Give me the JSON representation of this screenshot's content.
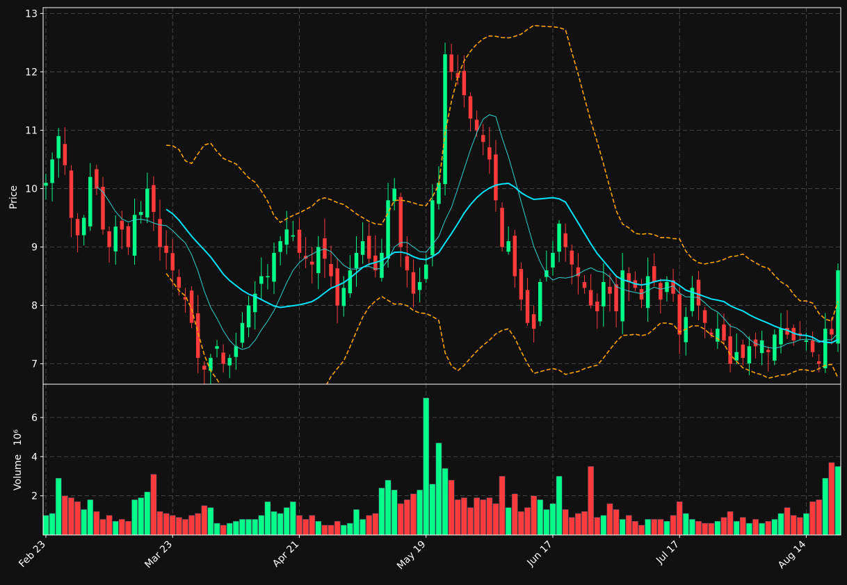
{
  "colors": {
    "background": "#111111",
    "up": "#00ff88",
    "down": "#ff3b3b",
    "sma_fast": "#2dd4d4",
    "sma_slow": "#00e5ff",
    "band": "#ffa500",
    "grid": "#555555",
    "axis": "#ffffff"
  },
  "chart_data": {
    "type": "candlestick",
    "style": "dark",
    "grid": true,
    "price_panel": {
      "ylabel": "Price",
      "ylim": [
        6.65,
        13.1
      ],
      "yticks": [
        "7",
        "8",
        "9",
        "10",
        "11",
        "12",
        "13"
      ],
      "ytick_values": [
        7,
        8,
        9,
        10,
        11,
        12,
        13
      ]
    },
    "volume_panel": {
      "ylabel": "Volume",
      "unit": "10⁶",
      "ylim": [
        0,
        7.7
      ],
      "yticks": [
        "2",
        "4",
        "6"
      ],
      "ytick_values": [
        2,
        4,
        6
      ]
    },
    "xticks": [
      {
        "label": "Feb 23",
        "index": 0
      },
      {
        "label": "Mar 23",
        "index": 20
      },
      {
        "label": "Apr 21",
        "index": 40
      },
      {
        "label": "May 19",
        "index": 60
      },
      {
        "label": "Jun 17",
        "index": 80
      },
      {
        "label": "Jul 17",
        "index": 100
      },
      {
        "label": "Aug 14",
        "index": 120
      }
    ],
    "anchors": {
      "close": [
        [
          0,
          10.1
        ],
        [
          2,
          10.9
        ],
        [
          3,
          10.4
        ],
        [
          4,
          9.5
        ],
        [
          5,
          9.2
        ],
        [
          6,
          9.5
        ],
        [
          7,
          10.2
        ],
        [
          8,
          10.0
        ],
        [
          9,
          9.3
        ],
        [
          10,
          9.0
        ],
        [
          11,
          9.35
        ],
        [
          12,
          9.3
        ],
        [
          13,
          9.0
        ],
        [
          14,
          9.55
        ],
        [
          15,
          9.6
        ],
        [
          16,
          10.0
        ],
        [
          17,
          9.6
        ],
        [
          18,
          9.0
        ],
        [
          19,
          8.9
        ],
        [
          20,
          8.6
        ],
        [
          21,
          8.3
        ],
        [
          22,
          8.1
        ],
        [
          23,
          7.7
        ],
        [
          24,
          7.1
        ],
        [
          25,
          6.9
        ],
        [
          26,
          7.1
        ],
        [
          27,
          7.3
        ],
        [
          28,
          7.0
        ],
        [
          29,
          7.1
        ],
        [
          30,
          7.3
        ],
        [
          31,
          7.7
        ],
        [
          32,
          8.0
        ],
        [
          33,
          8.2
        ],
        [
          34,
          8.5
        ],
        [
          35,
          8.5
        ],
        [
          36,
          8.9
        ],
        [
          37,
          9.1
        ],
        [
          38,
          9.3
        ],
        [
          39,
          9.2
        ],
        [
          40,
          8.9
        ],
        [
          41,
          8.8
        ],
        [
          42,
          8.7
        ],
        [
          43,
          9.0
        ],
        [
          44,
          8.8
        ],
        [
          45,
          8.5
        ],
        [
          46,
          8.0
        ],
        [
          47,
          8.3
        ],
        [
          48,
          8.6
        ],
        [
          49,
          8.9
        ],
        [
          50,
          9.1
        ],
        [
          51,
          8.8
        ],
        [
          52,
          8.6
        ],
        [
          53,
          8.9
        ],
        [
          54,
          9.8
        ],
        [
          55,
          10.0
        ],
        [
          56,
          9.0
        ],
        [
          57,
          8.6
        ],
        [
          58,
          8.2
        ],
        [
          59,
          8.4
        ],
        [
          60,
          8.7
        ],
        [
          61,
          9.8
        ],
        [
          62,
          10.1
        ],
        [
          63,
          12.3
        ],
        [
          64,
          12.0
        ],
        [
          65,
          11.9
        ],
        [
          66,
          11.6
        ],
        [
          67,
          11.2
        ],
        [
          68,
          11.0
        ],
        [
          69,
          10.8
        ],
        [
          70,
          10.5
        ],
        [
          71,
          9.8
        ],
        [
          72,
          9.0
        ],
        [
          73,
          9.1
        ],
        [
          74,
          8.5
        ],
        [
          75,
          8.1
        ],
        [
          76,
          7.7
        ],
        [
          77,
          7.6
        ],
        [
          78,
          8.4
        ],
        [
          79,
          8.6
        ],
        [
          80,
          8.9
        ],
        [
          81,
          9.4
        ],
        [
          82,
          9.0
        ],
        [
          83,
          8.7
        ],
        [
          84,
          8.5
        ],
        [
          85,
          8.3
        ],
        [
          86,
          8.0
        ],
        [
          87,
          7.9
        ],
        [
          88,
          8.4
        ],
        [
          89,
          8.2
        ],
        [
          90,
          7.9
        ],
        [
          91,
          8.6
        ],
        [
          92,
          8.4
        ],
        [
          93,
          8.3
        ],
        [
          94,
          8.1
        ],
        [
          95,
          8.5
        ],
        [
          96,
          8.4
        ],
        [
          97,
          8.1
        ],
        [
          98,
          8.4
        ],
        [
          99,
          8.2
        ],
        [
          100,
          7.5
        ],
        [
          101,
          7.8
        ],
        [
          102,
          8.3
        ],
        [
          103,
          8.0
        ],
        [
          104,
          7.7
        ],
        [
          105,
          7.5
        ],
        [
          106,
          7.6
        ],
        [
          107,
          7.4
        ],
        [
          108,
          7.0
        ],
        [
          109,
          7.2
        ],
        [
          110,
          7.1
        ],
        [
          111,
          7.3
        ],
        [
          112,
          7.3
        ],
        [
          113,
          7.4
        ],
        [
          114,
          7.2
        ],
        [
          115,
          7.5
        ],
        [
          116,
          7.6
        ],
        [
          117,
          7.5
        ],
        [
          118,
          7.4
        ],
        [
          119,
          7.5
        ],
        [
          120,
          7.4
        ],
        [
          121,
          7.2
        ],
        [
          122,
          7.0
        ],
        [
          123,
          7.6
        ],
        [
          124,
          7.5
        ],
        [
          125,
          8.6
        ]
      ],
      "volume": [
        [
          0,
          1.0
        ],
        [
          1,
          1.1
        ],
        [
          2,
          2.9
        ],
        [
          3,
          2.0
        ],
        [
          4,
          1.9
        ],
        [
          5,
          1.7
        ],
        [
          6,
          1.3
        ],
        [
          7,
          1.8
        ],
        [
          8,
          1.2
        ],
        [
          9,
          0.8
        ],
        [
          10,
          1.0
        ],
        [
          11,
          0.7
        ],
        [
          12,
          0.8
        ],
        [
          13,
          0.7
        ],
        [
          14,
          1.8
        ],
        [
          15,
          1.9
        ],
        [
          16,
          2.2
        ],
        [
          17,
          3.1
        ],
        [
          18,
          1.2
        ],
        [
          19,
          1.1
        ],
        [
          20,
          1.0
        ],
        [
          21,
          0.9
        ],
        [
          22,
          0.8
        ],
        [
          23,
          1.0
        ],
        [
          24,
          1.1
        ],
        [
          25,
          1.5
        ],
        [
          26,
          1.4
        ],
        [
          27,
          0.6
        ],
        [
          28,
          0.5
        ],
        [
          29,
          0.6
        ],
        [
          30,
          0.7
        ],
        [
          31,
          0.8
        ],
        [
          32,
          0.8
        ],
        [
          33,
          0.8
        ],
        [
          34,
          1.0
        ],
        [
          35,
          1.7
        ],
        [
          36,
          1.2
        ],
        [
          37,
          1.1
        ],
        [
          38,
          1.4
        ],
        [
          39,
          1.7
        ],
        [
          40,
          1.0
        ],
        [
          41,
          0.8
        ],
        [
          42,
          1.0
        ],
        [
          43,
          0.7
        ],
        [
          44,
          0.5
        ],
        [
          45,
          0.5
        ],
        [
          46,
          0.7
        ],
        [
          47,
          0.5
        ],
        [
          48,
          0.6
        ],
        [
          49,
          1.3
        ],
        [
          50,
          0.8
        ],
        [
          51,
          1.0
        ],
        [
          52,
          1.1
        ],
        [
          53,
          2.4
        ],
        [
          54,
          2.8
        ],
        [
          55,
          2.3
        ],
        [
          56,
          1.6
        ],
        [
          57,
          1.8
        ],
        [
          58,
          2.1
        ],
        [
          59,
          2.3
        ],
        [
          60,
          7.0
        ],
        [
          61,
          2.6
        ],
        [
          62,
          4.7
        ],
        [
          63,
          3.4
        ],
        [
          64,
          2.8
        ],
        [
          65,
          1.8
        ],
        [
          66,
          1.9
        ],
        [
          67,
          1.4
        ],
        [
          68,
          1.9
        ],
        [
          69,
          1.8
        ],
        [
          70,
          1.9
        ],
        [
          71,
          1.6
        ],
        [
          72,
          3.0
        ],
        [
          73,
          1.4
        ],
        [
          74,
          2.1
        ],
        [
          75,
          1.2
        ],
        [
          76,
          1.4
        ],
        [
          77,
          2.0
        ],
        [
          78,
          1.8
        ],
        [
          79,
          1.3
        ],
        [
          80,
          1.6
        ],
        [
          81,
          3.0
        ],
        [
          82,
          1.3
        ],
        [
          83,
          0.9
        ],
        [
          84,
          1.1
        ],
        [
          85,
          1.2
        ],
        [
          86,
          3.5
        ],
        [
          87,
          0.9
        ],
        [
          88,
          1.0
        ],
        [
          89,
          1.6
        ],
        [
          90,
          1.3
        ],
        [
          91,
          0.8
        ],
        [
          92,
          1.0
        ],
        [
          93,
          0.7
        ],
        [
          94,
          0.5
        ],
        [
          95,
          0.8
        ],
        [
          96,
          0.8
        ],
        [
          97,
          0.8
        ],
        [
          98,
          0.7
        ],
        [
          99,
          1.0
        ],
        [
          100,
          1.7
        ],
        [
          101,
          1.1
        ],
        [
          102,
          0.8
        ],
        [
          103,
          0.7
        ],
        [
          104,
          0.6
        ],
        [
          105,
          0.6
        ],
        [
          106,
          0.7
        ],
        [
          107,
          0.9
        ],
        [
          108,
          1.2
        ],
        [
          109,
          0.7
        ],
        [
          110,
          0.9
        ],
        [
          111,
          0.6
        ],
        [
          112,
          0.8
        ],
        [
          113,
          0.6
        ],
        [
          114,
          0.7
        ],
        [
          115,
          0.8
        ],
        [
          116,
          1.1
        ],
        [
          117,
          1.4
        ],
        [
          118,
          1.0
        ],
        [
          119,
          0.9
        ],
        [
          120,
          1.1
        ],
        [
          121,
          1.7
        ],
        [
          122,
          1.8
        ],
        [
          123,
          2.9
        ],
        [
          124,
          3.7
        ],
        [
          125,
          3.5
        ]
      ]
    },
    "n_bars": 126,
    "overlays": [
      {
        "type": "sma",
        "window": 5,
        "color": "#2dd4d4"
      },
      {
        "type": "sma",
        "window": 20,
        "color": "#00e5ff"
      },
      {
        "type": "bollinger",
        "window": 20,
        "std": 2,
        "color": "#ffa500"
      }
    ]
  }
}
